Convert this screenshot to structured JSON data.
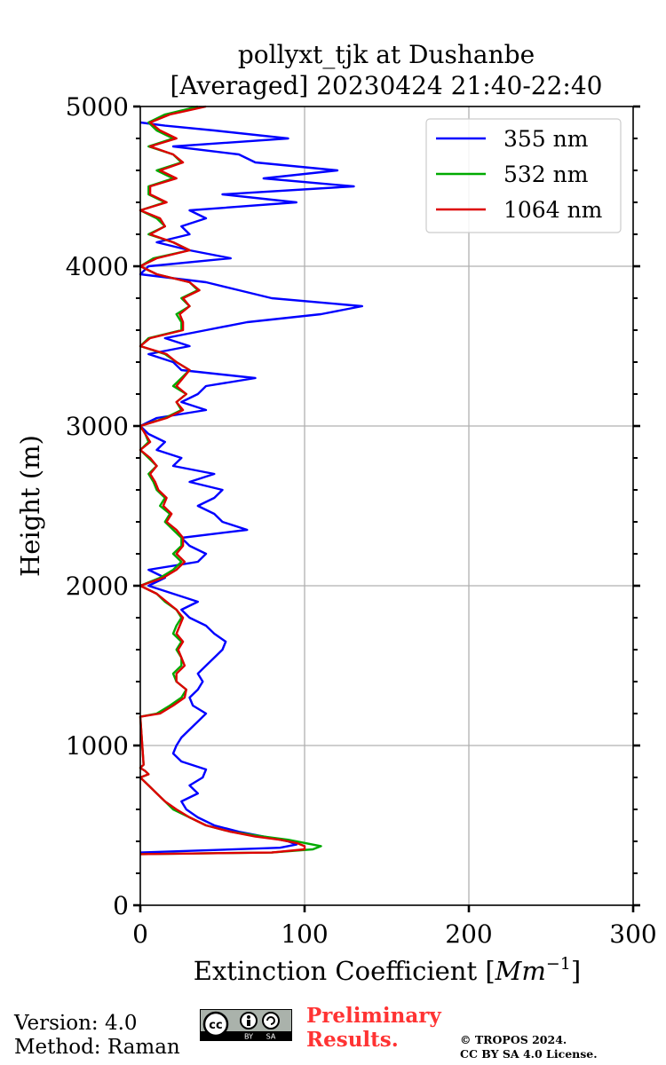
{
  "chart_data": {
    "type": "line",
    "title": "pollyxt_tjk at Dushanbe",
    "subtitle": "[Averaged] 20230424 21:40-22:40",
    "xlabel": "Extinction Coefficient [Mm⁻¹]",
    "xlabel_main": "Extinction Coefficient [",
    "xlabel_unit": "Mm",
    "xlabel_exp": "−1",
    "xlabel_close": "]",
    "ylabel": "Height (m)",
    "xlim": [
      0,
      300
    ],
    "ylim": [
      0,
      5000
    ],
    "xticks": [
      0,
      100,
      200,
      300
    ],
    "yticks": [
      0,
      1000,
      2000,
      3000,
      4000,
      5000
    ],
    "grid": true,
    "legend_position": "top-right",
    "series": [
      {
        "name": "355 nm",
        "color": "#0000ff",
        "height": [
          330,
          360,
          380,
          400,
          430,
          460,
          500,
          550,
          600,
          650,
          700,
          750,
          800,
          850,
          900,
          950,
          1000,
          1050,
          1100,
          1150,
          1200,
          1250,
          1300,
          1350,
          1400,
          1450,
          1500,
          1550,
          1600,
          1650,
          1700,
          1750,
          1800,
          1850,
          1900,
          1950,
          2000,
          2050,
          2100,
          2150,
          2200,
          2250,
          2300,
          2350,
          2400,
          2450,
          2500,
          2550,
          2600,
          2650,
          2700,
          2750,
          2800,
          2850,
          2900,
          2950,
          3000,
          3050,
          3100,
          3150,
          3200,
          3250,
          3300,
          3350,
          3400,
          3450,
          3500,
          3550,
          3600,
          3650,
          3700,
          3750,
          3800,
          3850,
          3900,
          3950,
          4000,
          4050,
          4100,
          4150,
          4200,
          4250,
          4300,
          4350,
          4400,
          4450,
          4500,
          4550,
          4600,
          4650,
          4700,
          4750,
          4800,
          4850,
          4880,
          4900
        ],
        "values": [
          0,
          85,
          95,
          90,
          75,
          60,
          45,
          35,
          28,
          25,
          35,
          30,
          38,
          40,
          25,
          20,
          22,
          25,
          30,
          35,
          40,
          32,
          30,
          35,
          38,
          35,
          40,
          45,
          50,
          52,
          45,
          40,
          30,
          25,
          35,
          20,
          5,
          15,
          5,
          35,
          40,
          30,
          25,
          65,
          50,
          45,
          35,
          45,
          50,
          30,
          45,
          20,
          25,
          10,
          15,
          5,
          0,
          10,
          40,
          25,
          35,
          40,
          70,
          25,
          20,
          5,
          30,
          15,
          40,
          65,
          110,
          135,
          80,
          60,
          40,
          0,
          5,
          55,
          30,
          10,
          30,
          25,
          40,
          30,
          95,
          50,
          130,
          75,
          120,
          70,
          60,
          20,
          90,
          45,
          15,
          0
        ]
      },
      {
        "name": "532 nm",
        "color": "#00aa00",
        "height": [
          320,
          330,
          350,
          370,
          390,
          410,
          430,
          460,
          500,
          550,
          600,
          650,
          700,
          750,
          800,
          820,
          840,
          860,
          880,
          1180,
          1200,
          1250,
          1300,
          1350,
          1400,
          1450,
          1500,
          1550,
          1600,
          1650,
          1700,
          1750,
          1800,
          1850,
          1900,
          1950,
          2000,
          2050,
          2100,
          2150,
          2200,
          2250,
          2300,
          2350,
          2400,
          2450,
          2500,
          2550,
          2600,
          2650,
          2700,
          2750,
          2800,
          2850,
          2900,
          2950,
          3000,
          3050,
          3100,
          3150,
          3200,
          3250,
          3300,
          3350,
          3400,
          3450,
          3500,
          3550,
          3600,
          3650,
          3700,
          3750,
          3800,
          3850,
          3900,
          3950,
          4000,
          4050,
          4100,
          4150,
          4200,
          4250,
          4300,
          4350,
          4400,
          4450,
          4500,
          4550,
          4600,
          4650,
          4700,
          4750,
          4800,
          4850,
          4900,
          4950,
          5000
        ],
        "values": [
          0,
          80,
          105,
          110,
          100,
          90,
          75,
          55,
          40,
          30,
          20,
          15,
          10,
          5,
          0,
          5,
          3,
          0,
          2,
          0,
          10,
          18,
          25,
          28,
          22,
          20,
          25,
          25,
          22,
          25,
          20,
          22,
          25,
          22,
          15,
          10,
          0,
          12,
          20,
          25,
          20,
          25,
          25,
          20,
          15,
          18,
          12,
          15,
          10,
          8,
          5,
          10,
          5,
          0,
          5,
          3,
          0,
          15,
          25,
          22,
          28,
          20,
          25,
          30,
          22,
          15,
          0,
          5,
          25,
          25,
          22,
          30,
          25,
          35,
          30,
          10,
          0,
          8,
          30,
          20,
          5,
          15,
          10,
          0,
          15,
          5,
          5,
          20,
          10,
          25,
          20,
          5,
          20,
          10,
          5,
          15,
          35
        ]
      },
      {
        "name": "1064 nm",
        "color": "#dd0000",
        "height": [
          320,
          330,
          350,
          370,
          390,
          410,
          430,
          460,
          500,
          550,
          600,
          650,
          700,
          750,
          800,
          820,
          840,
          860,
          880,
          1180,
          1200,
          1250,
          1300,
          1350,
          1400,
          1450,
          1500,
          1550,
          1600,
          1650,
          1700,
          1750,
          1800,
          1850,
          1900,
          1950,
          2000,
          2050,
          2100,
          2150,
          2200,
          2250,
          2300,
          2350,
          2400,
          2450,
          2500,
          2550,
          2600,
          2650,
          2700,
          2750,
          2800,
          2850,
          2900,
          2950,
          3000,
          3050,
          3100,
          3150,
          3200,
          3250,
          3300,
          3350,
          3400,
          3450,
          3500,
          3550,
          3600,
          3650,
          3700,
          3750,
          3800,
          3850,
          3900,
          3950,
          4000,
          4050,
          4100,
          4150,
          4200,
          4250,
          4300,
          4350,
          4400,
          4450,
          4500,
          4550,
          4600,
          4650,
          4700,
          4750,
          4800,
          4850,
          4900,
          4950,
          5000
        ],
        "values": [
          0,
          80,
          100,
          100,
          95,
          85,
          70,
          55,
          40,
          30,
          22,
          15,
          10,
          5,
          0,
          5,
          3,
          0,
          2,
          0,
          12,
          20,
          27,
          28,
          22,
          22,
          27,
          25,
          23,
          26,
          22,
          24,
          26,
          22,
          16,
          10,
          0,
          14,
          22,
          27,
          22,
          26,
          26,
          22,
          16,
          19,
          14,
          16,
          11,
          9,
          6,
          10,
          6,
          0,
          6,
          3,
          0,
          16,
          26,
          22,
          28,
          22,
          26,
          30,
          22,
          16,
          0,
          6,
          26,
          26,
          24,
          30,
          26,
          36,
          30,
          10,
          0,
          10,
          30,
          20,
          6,
          15,
          12,
          0,
          16,
          6,
          6,
          22,
          12,
          26,
          20,
          6,
          22,
          12,
          6,
          18,
          40
        ]
      }
    ]
  },
  "footer": {
    "version": "Version: 4.0",
    "method": "Method: Raman",
    "preliminary_line1": "Preliminary",
    "preliminary_line2": "Results.",
    "copyright_line1": "© TROPOS 2024.",
    "copyright_line2": "CC BY SA 4.0 License.",
    "license_badge_by": "BY",
    "license_badge_sa": "SA"
  }
}
